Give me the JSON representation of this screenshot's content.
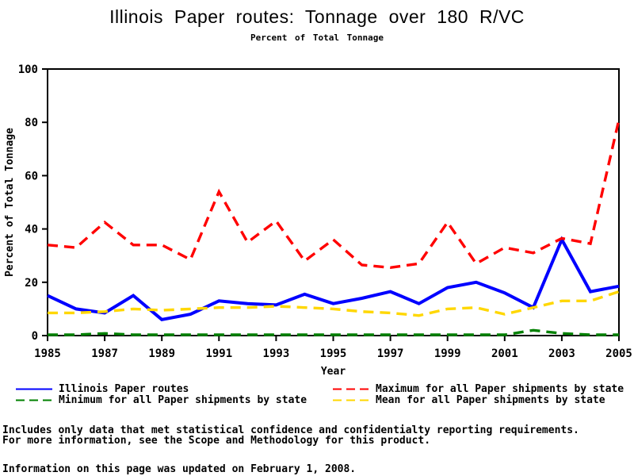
{
  "chart_data": {
    "type": "line",
    "title": "Illinois Paper routes: Tonnage over 180 R/VC",
    "subtitle": "Percent of Total Tonnage",
    "xlabel": "Year",
    "ylabel": "Percent of Total Tonnage",
    "xlim": [
      1985,
      2005
    ],
    "ylim": [
      0,
      100
    ],
    "xticks": [
      1985,
      1987,
      1989,
      1991,
      1993,
      1995,
      1997,
      1999,
      2001,
      2003,
      2005
    ],
    "yticks": [
      0,
      20,
      40,
      60,
      80,
      100
    ],
    "grid": false,
    "frame": true,
    "x": [
      1985,
      1986,
      1987,
      1988,
      1989,
      1990,
      1991,
      1992,
      1993,
      1994,
      1995,
      1996,
      1997,
      1998,
      1999,
      2000,
      2001,
      2002,
      2003,
      2004,
      2005
    ],
    "series": [
      {
        "name": "Illinois Paper routes",
        "color": "#0000ff",
        "style": "solid",
        "values": [
          15,
          10,
          8.5,
          15,
          6,
          8,
          13,
          12,
          11.5,
          15.5,
          12,
          14,
          16.5,
          12,
          18,
          20,
          16,
          10.5,
          36,
          16.5,
          18.5
        ]
      },
      {
        "name": "Maximum for all Paper shipments by state",
        "color": "#ff0000",
        "style": "dashed",
        "values": [
          34,
          33,
          42.5,
          34,
          34,
          28.5,
          54,
          35,
          43,
          28,
          36,
          26.5,
          25.5,
          27,
          42.5,
          27,
          33,
          31,
          36.5,
          34.5,
          81
        ]
      },
      {
        "name": "Minimum for all Paper shipments by state",
        "color": "#008000",
        "style": "dashed",
        "values": [
          0.3,
          0.3,
          0.8,
          0.3,
          0.3,
          0.3,
          0.3,
          0.3,
          0.3,
          0.3,
          0.3,
          0.3,
          0.3,
          0.3,
          0.3,
          0.3,
          0.3,
          2,
          0.8,
          0.3,
          0.3
        ]
      },
      {
        "name": "Mean for all Paper shipments by state",
        "color": "#ffd700",
        "style": "dashed",
        "values": [
          8.5,
          8.5,
          9,
          10,
          9.5,
          10,
          10.5,
          10.5,
          11,
          10.5,
          10,
          9,
          8.5,
          7.5,
          10,
          10.5,
          8,
          10.5,
          13,
          13,
          16.5
        ]
      }
    ],
    "legend": {
      "position": "bottom",
      "columns": 2,
      "items": [
        {
          "label": "Illinois Paper routes",
          "color": "#0000ff",
          "style": "solid"
        },
        {
          "label": "Maximum for all Paper shipments by state",
          "color": "#ff0000",
          "style": "dashed"
        },
        {
          "label": "Minimum for all Paper shipments by state",
          "color": "#008000",
          "style": "dashed"
        },
        {
          "label": "Mean for all Paper shipments by state",
          "color": "#ffd700",
          "style": "dashed"
        }
      ]
    }
  },
  "footer": {
    "note_line1": "Includes only data that met statistical confidence and confidentialty reporting requirements.",
    "note_line2": "For more information, see the Scope and Methodology for this product.",
    "updated": "Information on this page was updated on February 1, 2008."
  }
}
